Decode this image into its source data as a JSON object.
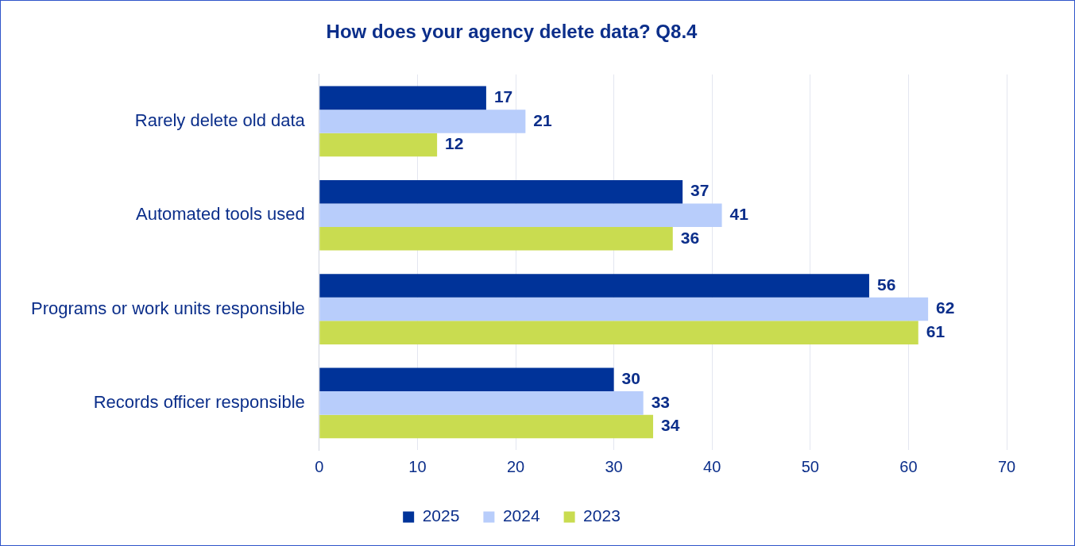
{
  "chart_data": {
    "type": "bar",
    "orientation": "horizontal",
    "title": "How does your agency delete data? Q8.4",
    "categories": [
      "Rarely delete old data",
      "Automated tools used",
      "Programs or work units responsible",
      "Records officer responsible"
    ],
    "series": [
      {
        "name": "2025",
        "color": "#003399",
        "values": [
          17,
          37,
          56,
          30
        ]
      },
      {
        "name": "2024",
        "color": "#b8cdfb",
        "values": [
          21,
          41,
          62,
          33
        ]
      },
      {
        "name": "2023",
        "color": "#c9dc50",
        "values": [
          12,
          36,
          61,
          34
        ]
      }
    ],
    "xlim": [
      0,
      70
    ],
    "xticks": [
      0,
      10,
      20,
      30,
      40,
      50,
      60,
      70
    ],
    "grid": "x",
    "legend": "bottom",
    "data_labels": true
  }
}
